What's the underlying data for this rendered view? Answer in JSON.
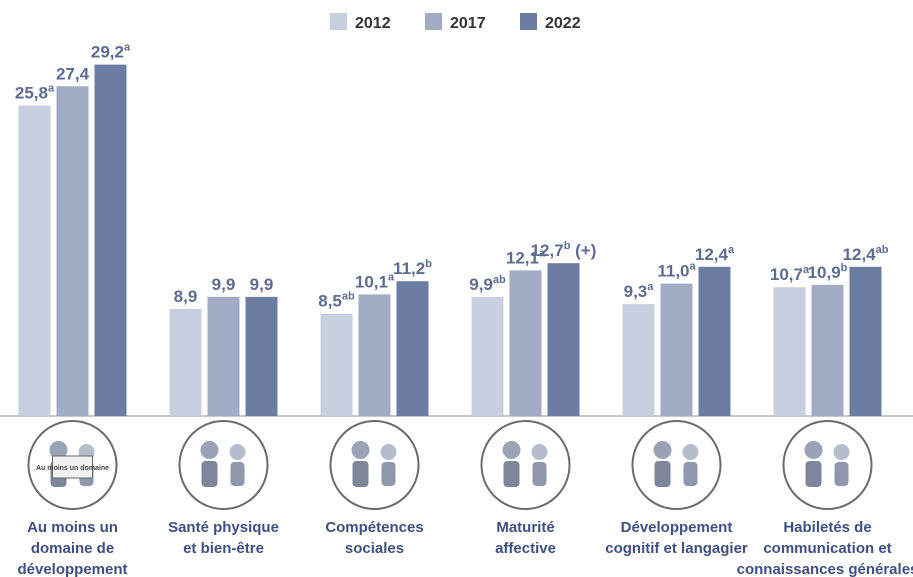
{
  "chart_data": {
    "type": "bar",
    "categories": [
      "Au moins un\ndomaine de\ndéveloppement",
      "Santé physique\net bien-être",
      "Compétences\nsociales",
      "Maturité\naffective",
      "Développement\ncognitif et langagier",
      "Habiletés de\ncommunication et\nconnaissances générales"
    ],
    "icon_text": "Au moins un domaine",
    "ylim": [
      0,
      30
    ],
    "legend": "top",
    "series": [
      {
        "name": "2012",
        "color": "#c8cfde",
        "values": [
          25.8,
          8.9,
          8.5,
          9.9,
          9.3,
          10.7
        ],
        "value_labels": [
          {
            "text": "25,8",
            "sup": "a"
          },
          {
            "text": "8,9"
          },
          {
            "text": "8,5",
            "sup": "ab"
          },
          {
            "text": "9,9",
            "sup": "ab"
          },
          {
            "text": "9,3",
            "sup": "a"
          },
          {
            "text": "10,7",
            "sup": "a"
          }
        ]
      },
      {
        "name": "2017",
        "color": "#a1abc3",
        "values": [
          27.4,
          9.9,
          10.1,
          12.1,
          11.0,
          10.9
        ],
        "value_labels": [
          {
            "text": "27,4"
          },
          {
            "text": "9,9"
          },
          {
            "text": "10,1",
            "sup": "a"
          },
          {
            "text": "12,1",
            "sup": "a"
          },
          {
            "text": "11,0",
            "sup": "a"
          },
          {
            "text": "10,9",
            "sup": "b"
          }
        ]
      },
      {
        "name": "2022",
        "color": "#6d7ca2",
        "values": [
          29.2,
          9.9,
          11.2,
          12.7,
          12.4,
          12.4
        ],
        "value_labels": [
          {
            "text": "29,2",
            "sup": "a"
          },
          {
            "text": "9,9"
          },
          {
            "text": "11,2",
            "sup": "b"
          },
          {
            "text": "12,7",
            "sup": "b",
            "suffix": " (+)"
          },
          {
            "text": "12,4",
            "sup": "a"
          },
          {
            "text": "12,4",
            "sup": "ab"
          }
        ]
      }
    ]
  }
}
